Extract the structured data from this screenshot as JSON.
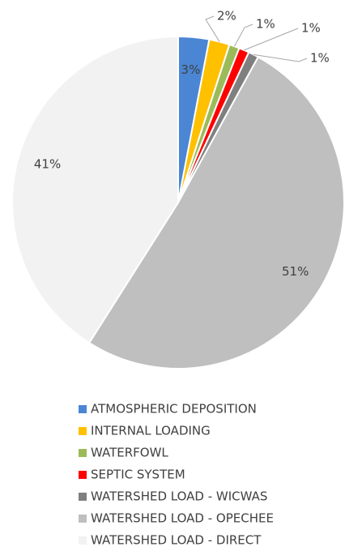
{
  "chart_data": {
    "type": "pie",
    "categories": [
      "ATMOSPHERIC DEPOSITION",
      "INTERNAL LOADING",
      "WATERFOWL",
      "SEPTIC SYSTEM",
      "WATERSHED LOAD - WICWAS",
      "WATERSHED LOAD - OPECHEE",
      "WATERSHED LOAD - DIRECT"
    ],
    "values": [
      3,
      2,
      1,
      1,
      1,
      51,
      41
    ],
    "value_labels": [
      "3%",
      "2%",
      "1%",
      "1%",
      "1%",
      "51%",
      "41%"
    ],
    "colors": [
      "#4a86d4",
      "#ffc000",
      "#9bbb59",
      "#ff0000",
      "#7f7f7f",
      "#bfbfbf",
      "#f2f2f2"
    ],
    "legend": "bottom"
  }
}
